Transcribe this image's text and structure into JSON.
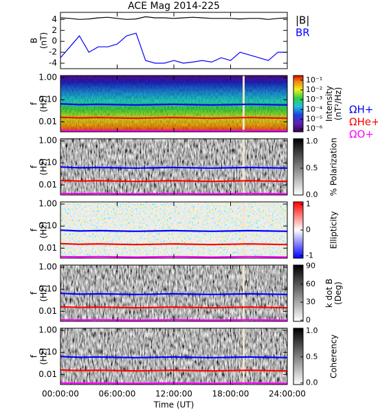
{
  "chart_data": [
    {
      "type": "line",
      "title": "ACE Mag 2014-225",
      "ylabel": [
        "B",
        "(nT)"
      ],
      "xlim": [
        0,
        24
      ],
      "ylim": [
        -5,
        5.3
      ],
      "yticks": [
        -4,
        -2,
        0,
        2,
        4
      ],
      "x": [
        0,
        1,
        2,
        3,
        4,
        5,
        6,
        7,
        8,
        9,
        10,
        11,
        12,
        13,
        14,
        15,
        16,
        17,
        18,
        19,
        20,
        21,
        22,
        23,
        24
      ],
      "series": [
        {
          "name": "|B|",
          "color": "#000000",
          "values": [
            4.3,
            4.2,
            4.0,
            4.1,
            4.3,
            4.4,
            4.2,
            4.0,
            4.1,
            4.5,
            4.3,
            4.3,
            4.2,
            4.3,
            4.4,
            4.3,
            4.2,
            4.2,
            4.2,
            4.1,
            4.2,
            4.2,
            4.0,
            4.2,
            4.3
          ]
        },
        {
          "name": "BR",
          "color": "#0000ff",
          "values": [
            -3,
            -1,
            1,
            -2,
            -1,
            -1,
            -0.5,
            1,
            1.5,
            -3.5,
            -4,
            -4,
            -3.5,
            -4,
            -3.8,
            -3.5,
            -3.8,
            -3,
            -3.5,
            -2,
            -2.5,
            -3,
            -3.5,
            -2,
            -2
          ]
        }
      ]
    },
    {
      "type": "spectrogram",
      "colormap": "rainbow",
      "ylabel": [
        "f",
        "(Hz)"
      ],
      "log_y": true,
      "xlim": [
        0,
        24
      ],
      "ylim": [
        0.0035,
        1.25
      ],
      "yticks": [
        {
          "value": 0.01,
          "label": "0.01"
        },
        {
          "value": 0.1,
          "label": "0.10"
        },
        {
          "value": 1,
          "label": "1.00"
        }
      ],
      "colorbar_label": [
        "Intensity",
        "(nT²/Hz)"
      ],
      "colorbar_log": true,
      "colorbar_lim": [
        5e-07,
        0.3
      ],
      "colorbar_ticks": [
        {
          "value": 0.1,
          "label": "10⁻¹"
        },
        {
          "value": 0.01,
          "label": "10⁻²"
        },
        {
          "value": 0.001,
          "label": "10⁻³"
        },
        {
          "value": 0.0001,
          "label": "10⁻⁴"
        },
        {
          "value": 1e-05,
          "label": "10⁻⁵"
        },
        {
          "value": 1e-06,
          "label": "10⁻⁶"
        }
      ],
      "x": [
        0,
        2,
        4,
        6,
        8,
        10,
        12,
        14,
        16,
        18,
        20,
        22,
        24
      ],
      "series": [
        {
          "name": "ΩH+",
          "color": "#0000ff",
          "values": [
            0.065,
            0.06,
            0.062,
            0.06,
            0.058,
            0.06,
            0.062,
            0.06,
            0.058,
            0.06,
            0.062,
            0.06,
            0.058
          ]
        },
        {
          "name": "ΩHe+",
          "color": "#ff0000",
          "values": [
            0.016,
            0.015,
            0.0155,
            0.015,
            0.0145,
            0.015,
            0.0155,
            0.015,
            0.0145,
            0.015,
            0.0155,
            0.015,
            0.0145
          ]
        },
        {
          "name": "ΩO+",
          "color": "#ff00ff",
          "values": [
            0.0041,
            0.004,
            0.0041,
            0.004,
            0.0039,
            0.004,
            0.0041,
            0.004,
            0.0039,
            0.004,
            0.0041,
            0.004,
            0.0039
          ]
        }
      ]
    },
    {
      "type": "spectrogram",
      "colormap": "gray",
      "ylabel": [
        "f",
        "(Hz)"
      ],
      "log_y": true,
      "xlim": [
        0,
        24
      ],
      "ylim": [
        0.0035,
        1.25
      ],
      "yticks": [
        {
          "value": 0.01,
          "label": "0.01"
        },
        {
          "value": 0.1,
          "label": "0.10"
        },
        {
          "value": 1,
          "label": "1.00"
        }
      ],
      "colorbar_label": [
        "% Polarization"
      ],
      "colorbar_lim": [
        0,
        1.05
      ],
      "colorbar_ticks": [
        {
          "value": 0,
          "label": "0.0"
        },
        {
          "value": 0.5,
          "label": "0.5"
        },
        {
          "value": 1,
          "label": "1.0"
        }
      ],
      "x": [
        0,
        2,
        4,
        6,
        8,
        10,
        12,
        14,
        16,
        18,
        20,
        22,
        24
      ],
      "series": [
        {
          "color": "#0000ff",
          "values": [
            0.065,
            0.06,
            0.062,
            0.06,
            0.058,
            0.06,
            0.062,
            0.06,
            0.058,
            0.06,
            0.062,
            0.06,
            0.058
          ]
        },
        {
          "color": "#ff0000",
          "values": [
            0.016,
            0.015,
            0.0155,
            0.015,
            0.0145,
            0.015,
            0.0155,
            0.015,
            0.0145,
            0.015,
            0.0155,
            0.015,
            0.0145
          ]
        },
        {
          "color": "#ff00ff",
          "values": [
            0.0041,
            0.004,
            0.0041,
            0.004,
            0.0039,
            0.004,
            0.0041,
            0.004,
            0.0039,
            0.004,
            0.0041,
            0.004,
            0.0039
          ]
        }
      ]
    },
    {
      "type": "spectrogram",
      "colormap": "bwr",
      "ylabel": [
        "f",
        "(Hz)"
      ],
      "log_y": true,
      "xlim": [
        0,
        24
      ],
      "ylim": [
        0.0035,
        1.25
      ],
      "yticks": [
        {
          "value": 0.01,
          "label": "0.01"
        },
        {
          "value": 0.1,
          "label": "0.10"
        },
        {
          "value": 1,
          "label": "1.00"
        }
      ],
      "colorbar_label": [
        "Ellipticity"
      ],
      "colorbar_lim": [
        -1.1,
        1.1
      ],
      "colorbar_ticks": [
        -1,
        0,
        1
      ],
      "x": [
        0,
        2,
        4,
        6,
        8,
        10,
        12,
        14,
        16,
        18,
        20,
        22,
        24
      ],
      "series": [
        {
          "color": "#0000ff",
          "values": [
            0.065,
            0.06,
            0.062,
            0.06,
            0.058,
            0.06,
            0.062,
            0.06,
            0.058,
            0.06,
            0.062,
            0.06,
            0.058
          ]
        },
        {
          "color": "#ff0000",
          "values": [
            0.016,
            0.015,
            0.0155,
            0.015,
            0.0145,
            0.015,
            0.0155,
            0.015,
            0.0145,
            0.015,
            0.0155,
            0.015,
            0.0145
          ]
        },
        {
          "color": "#ff00ff",
          "values": [
            0.0041,
            0.004,
            0.0041,
            0.004,
            0.0039,
            0.004,
            0.0041,
            0.004,
            0.0039,
            0.004,
            0.0041,
            0.004,
            0.0039
          ]
        }
      ]
    },
    {
      "type": "spectrogram",
      "colormap": "gray",
      "ylabel": [
        "f",
        "(Hz)"
      ],
      "log_y": true,
      "xlim": [
        0,
        24
      ],
      "ylim": [
        0.0035,
        1.25
      ],
      "yticks": [
        {
          "value": 0.01,
          "label": "0.01"
        },
        {
          "value": 0.1,
          "label": "0.10"
        },
        {
          "value": 1,
          "label": "1.00"
        }
      ],
      "colorbar_label": [
        "k dot B",
        "(Deg)"
      ],
      "colorbar_lim": [
        -2,
        92
      ],
      "colorbar_ticks": [
        0,
        30,
        60,
        90
      ],
      "x": [
        0,
        2,
        4,
        6,
        8,
        10,
        12,
        14,
        16,
        18,
        20,
        22,
        24
      ],
      "series": [
        {
          "color": "#0000ff",
          "values": [
            0.065,
            0.06,
            0.062,
            0.06,
            0.058,
            0.06,
            0.062,
            0.06,
            0.058,
            0.06,
            0.062,
            0.06,
            0.058
          ]
        },
        {
          "color": "#ff0000",
          "values": [
            0.016,
            0.015,
            0.0155,
            0.015,
            0.0145,
            0.015,
            0.0155,
            0.015,
            0.0145,
            0.015,
            0.0155,
            0.015,
            0.0145
          ]
        },
        {
          "color": "#ff00ff",
          "values": [
            0.0041,
            0.004,
            0.0041,
            0.004,
            0.0039,
            0.004,
            0.0041,
            0.004,
            0.0039,
            0.004,
            0.0041,
            0.004,
            0.0039
          ]
        }
      ]
    },
    {
      "type": "spectrogram",
      "colormap": "gray",
      "ylabel": [
        "f",
        "(Hz)"
      ],
      "log_y": true,
      "xlim": [
        0,
        24
      ],
      "ylim": [
        0.0035,
        1.25
      ],
      "yticks": [
        {
          "value": 0.01,
          "label": "0.01"
        },
        {
          "value": 0.1,
          "label": "0.10"
        },
        {
          "value": 1,
          "label": "1.00"
        }
      ],
      "colorbar_label": [
        "Coherency"
      ],
      "colorbar_lim": [
        -0.03,
        1.05
      ],
      "colorbar_ticks": [
        {
          "value": 0,
          "label": "0.0"
        },
        {
          "value": 0.5,
          "label": "0.5"
        },
        {
          "value": 1,
          "label": "1.0"
        }
      ],
      "xlabel": "Time (UT)",
      "xticks": [
        {
          "value": 0,
          "label": "00:00:00"
        },
        {
          "value": 6,
          "label": "06:00:00"
        },
        {
          "value": 12,
          "label": "12:00:00"
        },
        {
          "value": 18,
          "label": "18:00:00"
        },
        {
          "value": 24,
          "label": "24:00:00"
        }
      ],
      "x": [
        0,
        2,
        4,
        6,
        8,
        10,
        12,
        14,
        16,
        18,
        20,
        22,
        24
      ],
      "series": [
        {
          "color": "#0000ff",
          "values": [
            0.065,
            0.06,
            0.062,
            0.06,
            0.058,
            0.06,
            0.062,
            0.06,
            0.058,
            0.06,
            0.062,
            0.06,
            0.058
          ]
        },
        {
          "color": "#ff0000",
          "values": [
            0.016,
            0.015,
            0.0155,
            0.015,
            0.0145,
            0.015,
            0.0155,
            0.015,
            0.0145,
            0.015,
            0.0155,
            0.015,
            0.0145
          ]
        },
        {
          "color": "#ff00ff",
          "values": [
            0.0041,
            0.004,
            0.0041,
            0.004,
            0.0039,
            0.004,
            0.0041,
            0.004,
            0.0039,
            0.004,
            0.0041,
            0.004,
            0.0039
          ]
        }
      ]
    }
  ]
}
